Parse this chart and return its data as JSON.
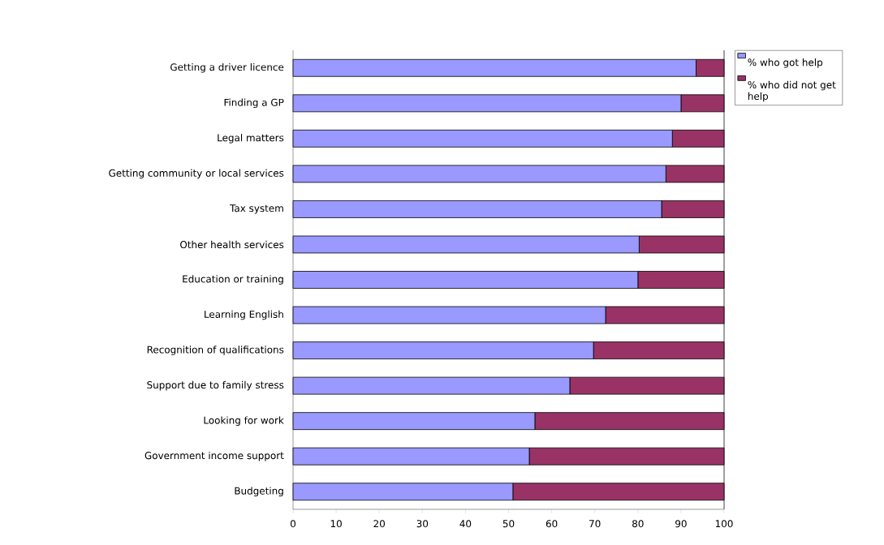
{
  "chart_data": {
    "type": "bar",
    "orientation": "horizontal",
    "stacked": true,
    "categories": [
      "Getting a driver licence",
      "Finding a GP",
      "Legal matters",
      "Getting community or local services",
      "Tax system",
      "Other health services",
      "Education or training",
      "Learning English",
      "Recognition of qualifications",
      "Support due to family stress",
      "Looking for work",
      "Government income support",
      "Budgeting"
    ],
    "series": [
      {
        "name": "% who got help",
        "color": "#9999ff",
        "values": [
          93.5,
          90,
          88,
          86.5,
          85.5,
          80.3,
          80,
          72.5,
          69.7,
          64.2,
          56.1,
          54.8,
          51
        ]
      },
      {
        "name": "% who did not get help",
        "color": "#993366",
        "values": [
          6.5,
          10,
          12,
          13.5,
          14.5,
          19.7,
          20,
          27.5,
          30.3,
          35.8,
          43.9,
          45.2,
          49
        ]
      }
    ],
    "xlim": [
      0,
      100
    ],
    "xticks": [
      0,
      10,
      20,
      30,
      40,
      50,
      60,
      70,
      80,
      90,
      100
    ],
    "grid": false,
    "legend": "top right"
  }
}
